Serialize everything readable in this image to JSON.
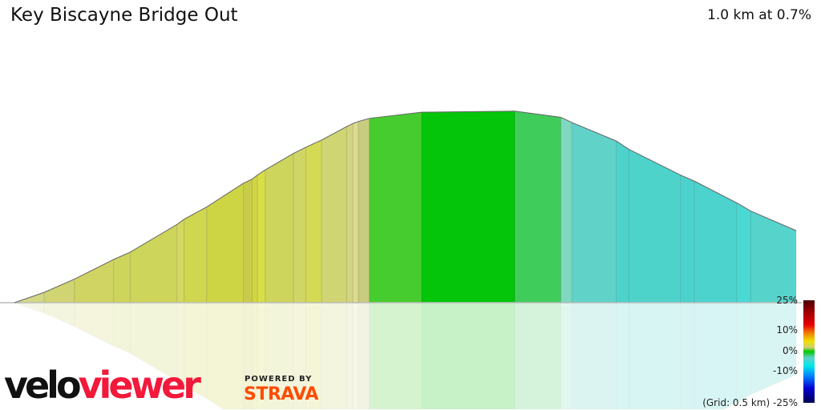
{
  "header": {
    "title": "Key Biscayne Bridge Out",
    "summary": "1.0 km at 0.7%"
  },
  "chart_data": {
    "type": "area",
    "title": "Key Biscayne Bridge Out",
    "x_unit": "km",
    "y_unit": "m",
    "xlim": [
      0,
      1.0
    ],
    "grid_note": "(Grid: 0.5 km)",
    "points": [
      [
        0,
        0
      ],
      [
        0.038,
        1.0
      ],
      [
        0.077,
        2.3
      ],
      [
        0.127,
        4.2
      ],
      [
        0.148,
        4.9
      ],
      [
        0.208,
        7.6
      ],
      [
        0.217,
        8.1
      ],
      [
        0.246,
        9.3
      ],
      [
        0.293,
        11.6
      ],
      [
        0.304,
        12.0
      ],
      [
        0.311,
        12.4
      ],
      [
        0.321,
        12.9
      ],
      [
        0.357,
        14.5
      ],
      [
        0.373,
        15.1
      ],
      [
        0.393,
        15.8
      ],
      [
        0.425,
        17.1
      ],
      [
        0.433,
        17.4
      ],
      [
        0.44,
        17.6
      ],
      [
        0.454,
        17.9
      ],
      [
        0.521,
        18.5
      ],
      [
        0.64,
        18.6
      ],
      [
        0.699,
        18.0
      ],
      [
        0.713,
        17.5
      ],
      [
        0.77,
        15.7
      ],
      [
        0.786,
        14.9
      ],
      [
        0.852,
        12.4
      ],
      [
        0.87,
        11.8
      ],
      [
        0.924,
        9.7
      ],
      [
        0.942,
        8.9
      ],
      [
        1.0,
        7.0
      ]
    ],
    "segment_colors": [
      "#d3d886",
      "#d0d472",
      "#cfd463",
      "#cdd55c",
      "#cdd55a",
      "#d2d860",
      "#cfd64f",
      "#cdd544",
      "#c8cc4a",
      "#d0d640",
      "#d8de48",
      "#cdd55c",
      "#d0d666",
      "#d4da54",
      "#cfd572",
      "#d2d480",
      "#dcdc90",
      "#c8cc80",
      "#47cc30",
      "#04c50a",
      "#40cc5a",
      "#80d8c0",
      "#60d2c8",
      "#4dd3cc",
      "#4ed3cb",
      "#4cd2cc",
      "#4dd3ce",
      "#4ad8d2",
      "#56d4cc"
    ],
    "legend": {
      "ticks": [
        "25%",
        "10%",
        "0%",
        "-10%",
        "-25%"
      ]
    }
  },
  "branding": {
    "logo_a": "velo",
    "logo_b": "viewer",
    "powered": "POWERED BY",
    "strava": "STRAVA"
  }
}
